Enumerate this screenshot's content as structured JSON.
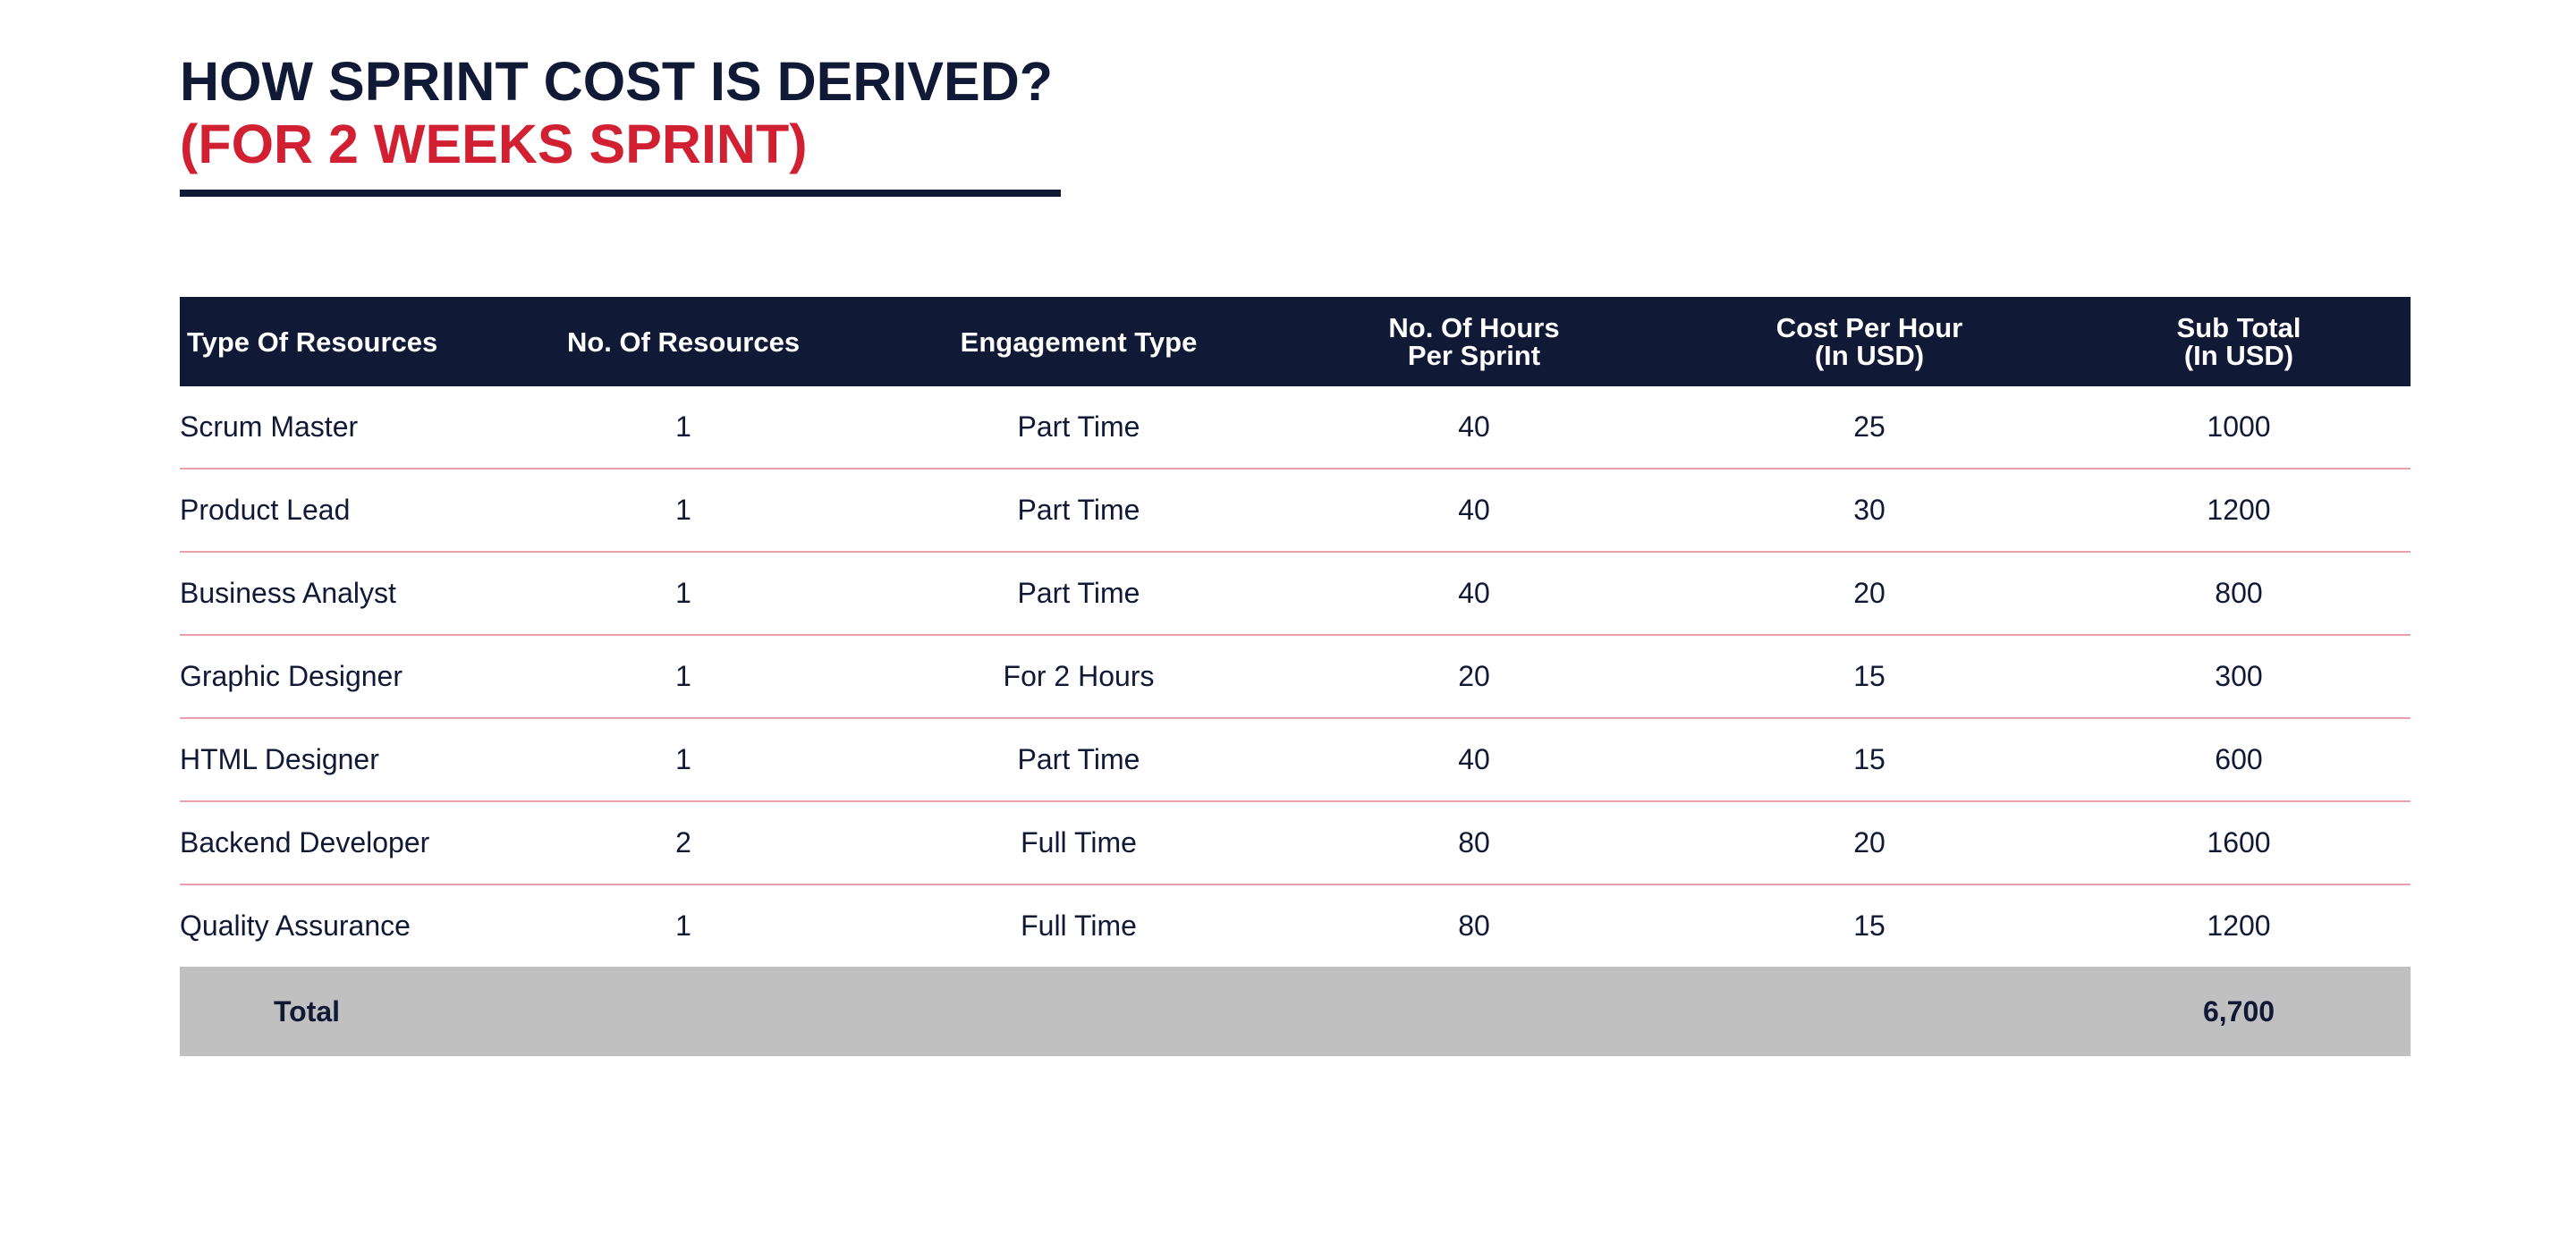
{
  "title": {
    "line1": "HOW SPRINT COST IS DERIVED?",
    "line2": "(FOR 2 WEEKS SPRINT)"
  },
  "table": {
    "headers": [
      {
        "line1": "Type Of Resources",
        "line2": ""
      },
      {
        "line1": "No. Of Resources",
        "line2": ""
      },
      {
        "line1": "Engagement Type",
        "line2": ""
      },
      {
        "line1": "No. Of Hours",
        "line2": "Per Sprint"
      },
      {
        "line1": "Cost Per Hour",
        "line2": "(In USD)"
      },
      {
        "line1": "Sub Total",
        "line2": "(In USD)"
      }
    ],
    "rows": [
      {
        "resource": "Scrum Master",
        "count": "1",
        "engagement": "Part Time",
        "hours": "40",
        "cost": "25",
        "subtotal": "1000"
      },
      {
        "resource": "Product Lead",
        "count": "1",
        "engagement": "Part Time",
        "hours": "40",
        "cost": "30",
        "subtotal": "1200"
      },
      {
        "resource": "Business Analyst",
        "count": "1",
        "engagement": "Part Time",
        "hours": "40",
        "cost": "20",
        "subtotal": "800"
      },
      {
        "resource": "Graphic Designer",
        "count": "1",
        "engagement": "For 2 Hours",
        "hours": "20",
        "cost": "15",
        "subtotal": "300"
      },
      {
        "resource": "HTML Designer",
        "count": "1",
        "engagement": "Part Time",
        "hours": "40",
        "cost": "15",
        "subtotal": "600"
      },
      {
        "resource": "Backend Developer",
        "count": "2",
        "engagement": "Full Time",
        "hours": "80",
        "cost": "20",
        "subtotal": "1600"
      },
      {
        "resource": "Quality Assurance",
        "count": "1",
        "engagement": "Full Time",
        "hours": "80",
        "cost": "15",
        "subtotal": "1200"
      }
    ],
    "total": {
      "label": "Total",
      "value": "6,700"
    }
  },
  "colors": {
    "navy": "#101a36",
    "red": "#d22033",
    "row_divider": "#e9a0a8",
    "total_bg": "#c0c0c0"
  }
}
